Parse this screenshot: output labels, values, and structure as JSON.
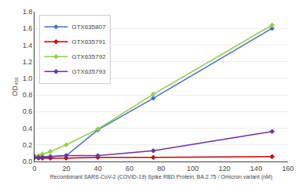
{
  "chart_data": {
    "type": "line",
    "x": [
      0,
      2.5,
      5,
      10,
      20,
      40,
      75,
      150
    ],
    "series": [
      {
        "name": "GTX635807",
        "color": "#4472c4",
        "values": [
          0.05,
          0.05,
          0.06,
          0.06,
          0.07,
          0.38,
          0.76,
          1.6
        ]
      },
      {
        "name": "GTX635791",
        "color": "#cc0000",
        "values": [
          0.05,
          0.04,
          0.04,
          0.04,
          0.04,
          0.05,
          0.05,
          0.06
        ]
      },
      {
        "name": "GTX635792",
        "color": "#92d050",
        "values": [
          0.07,
          0.07,
          0.09,
          0.12,
          0.2,
          0.39,
          0.81,
          1.64
        ]
      },
      {
        "name": "GTX635793",
        "color": "#7030a0",
        "values": [
          0.05,
          0.05,
          0.05,
          0.06,
          0.07,
          0.07,
          0.13,
          0.36
        ]
      }
    ],
    "marker": "diamond",
    "xlabel": "Recombinant SARS-CoV-2 (COVID-19) Spike RBD Protein, BA.2.75 / Omicron variant (nM)",
    "ylabel": "OD₄₅₀",
    "xlim": [
      0,
      160
    ],
    "ylim": [
      0,
      1.8
    ],
    "xticks": [
      0,
      20,
      40,
      60,
      80,
      100,
      120,
      140,
      160
    ],
    "yticks": [
      {
        "value": 0,
        "label": "0.0"
      },
      0.2,
      0.4,
      0.6,
      0.8,
      {
        "value": 1,
        "label": "1.0"
      },
      1.2,
      1.4,
      1.6,
      1.8
    ],
    "grid": "y",
    "legend": "upper left"
  }
}
